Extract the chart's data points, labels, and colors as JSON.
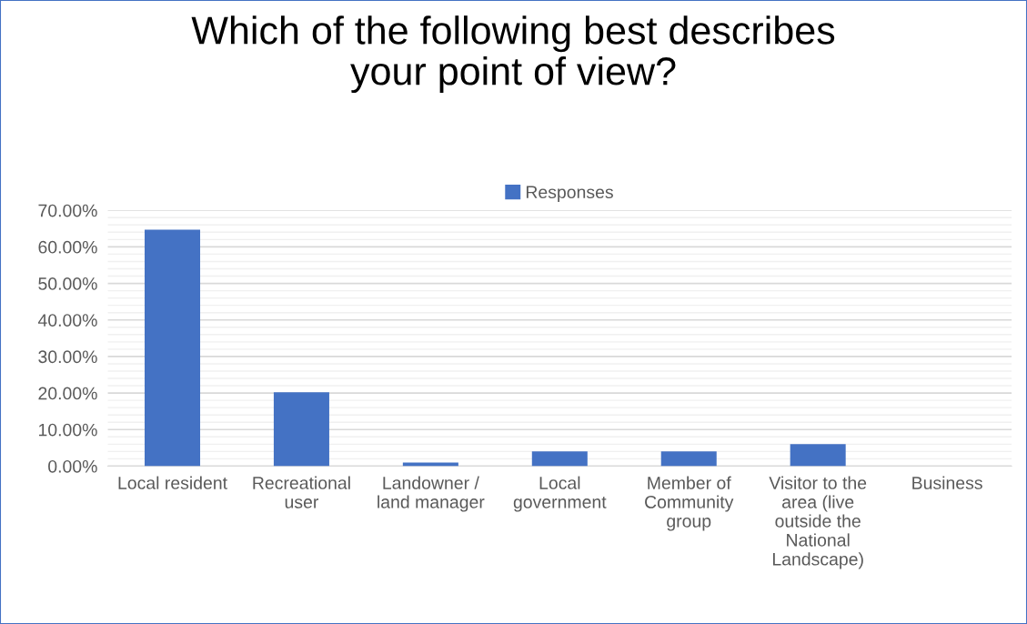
{
  "chart_data": {
    "type": "bar",
    "title": "Which of the following best describes\nyour point of view?",
    "categories": [
      "Local resident",
      "Recreational\nuser",
      "Landowner /\nland manager",
      "Local\ngovernment",
      "Member of\nCommunity\ngroup",
      "Visitor to the\narea (live\noutside the\nNational\nLandscape)",
      "Business"
    ],
    "series": [
      {
        "name": "Responses",
        "color": "#4472c4",
        "values": [
          64.7,
          20.2,
          1.0,
          4.0,
          4.0,
          6.0,
          0.0
        ]
      }
    ],
    "ylim": [
      0,
      70
    ],
    "yticks": [
      {
        "value": 0,
        "label": "0.00%"
      },
      {
        "value": 10,
        "label": "10.00%"
      },
      {
        "value": 20,
        "label": "20.00%"
      },
      {
        "value": 30,
        "label": "30.00%"
      },
      {
        "value": 40,
        "label": "40.00%"
      },
      {
        "value": 50,
        "label": "50.00%"
      },
      {
        "value": 60,
        "label": "60.00%"
      },
      {
        "value": 70,
        "label": "70.00%"
      }
    ],
    "grid": "y",
    "legend": "top"
  }
}
